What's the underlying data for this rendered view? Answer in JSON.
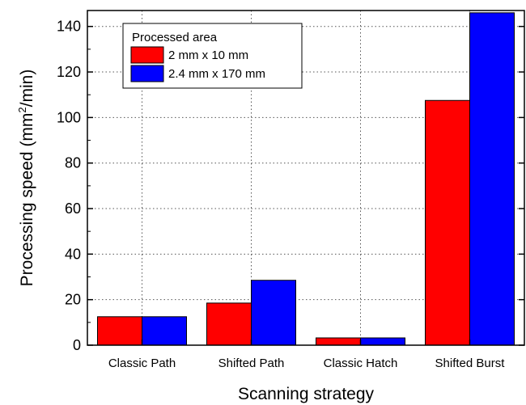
{
  "chart_data": {
    "type": "bar",
    "title": "",
    "xlabel": "Scanning strategy",
    "ylabel": "Processing speed (mm²/min)",
    "ylabel_parts": {
      "before": "Processing speed (mm",
      "sup": "2",
      "after": "/min)"
    },
    "categories": [
      "Classic Path",
      "Shifted Path",
      "Classic Hatch",
      "Shifted Burst"
    ],
    "series": [
      {
        "name": "2 mm x 10 mm",
        "color": "#ff0000",
        "values": [
          12.5,
          18.5,
          3.2,
          107.5
        ]
      },
      {
        "name": "2.4 mm x 170 mm",
        "color": "#0000ff",
        "values": [
          12.5,
          28.5,
          3.2,
          146.0
        ]
      }
    ],
    "ylim": [
      0,
      147
    ],
    "yticks": [
      0,
      20,
      40,
      60,
      80,
      100,
      120,
      140
    ],
    "grid": true,
    "legend": {
      "title": "Processed area",
      "position": "top-left"
    }
  }
}
